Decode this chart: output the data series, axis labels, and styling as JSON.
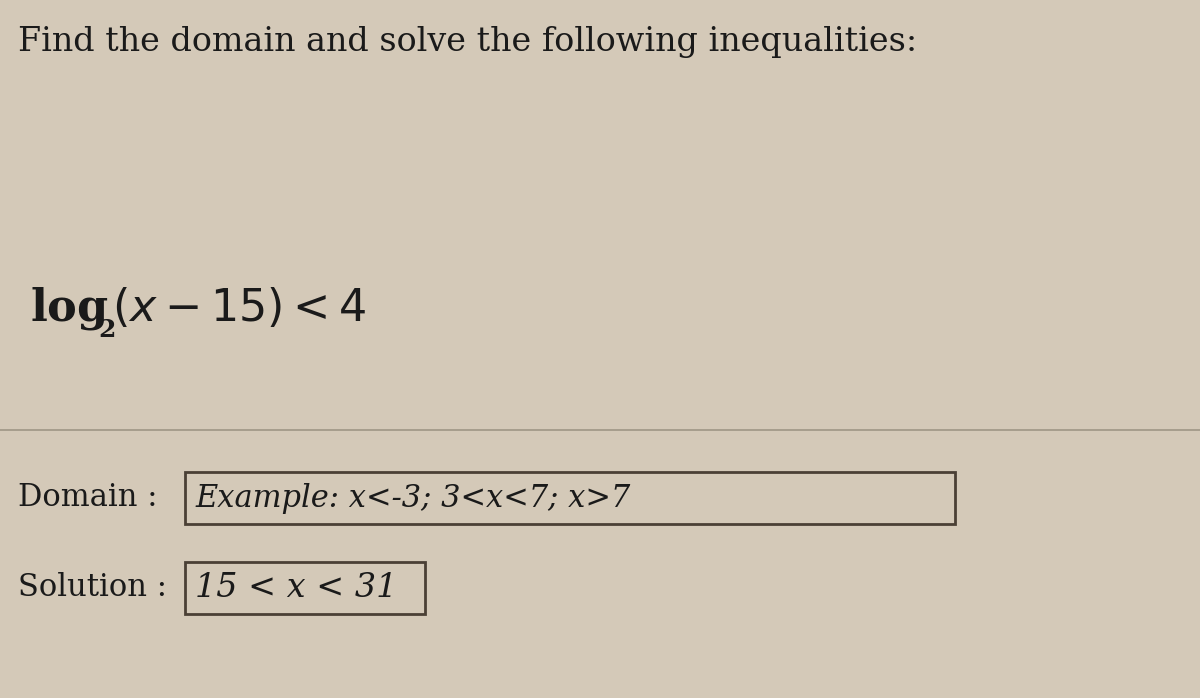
{
  "background_color": "#d4c9b8",
  "title_text": "Find the domain and solve the following inequalities:",
  "title_fontsize": 24,
  "title_color": "#1a1a1a",
  "equation_fontsize": 32,
  "equation_color": "#1a1a1a",
  "domain_label": "Domain : ",
  "domain_value": "Example: x<-3; 3<x<7; x>7",
  "solution_label": "Solution : ",
  "solution_value": "15 < x < 31",
  "label_fontsize": 22,
  "domain_value_fontsize": 22,
  "solution_value_fontsize": 24,
  "label_color": "#1a1a1a",
  "box_edge_color": "#4a4035",
  "box_face_color": "#d4c9b8",
  "divider_color": "#999080",
  "sub_fontsize": 18
}
